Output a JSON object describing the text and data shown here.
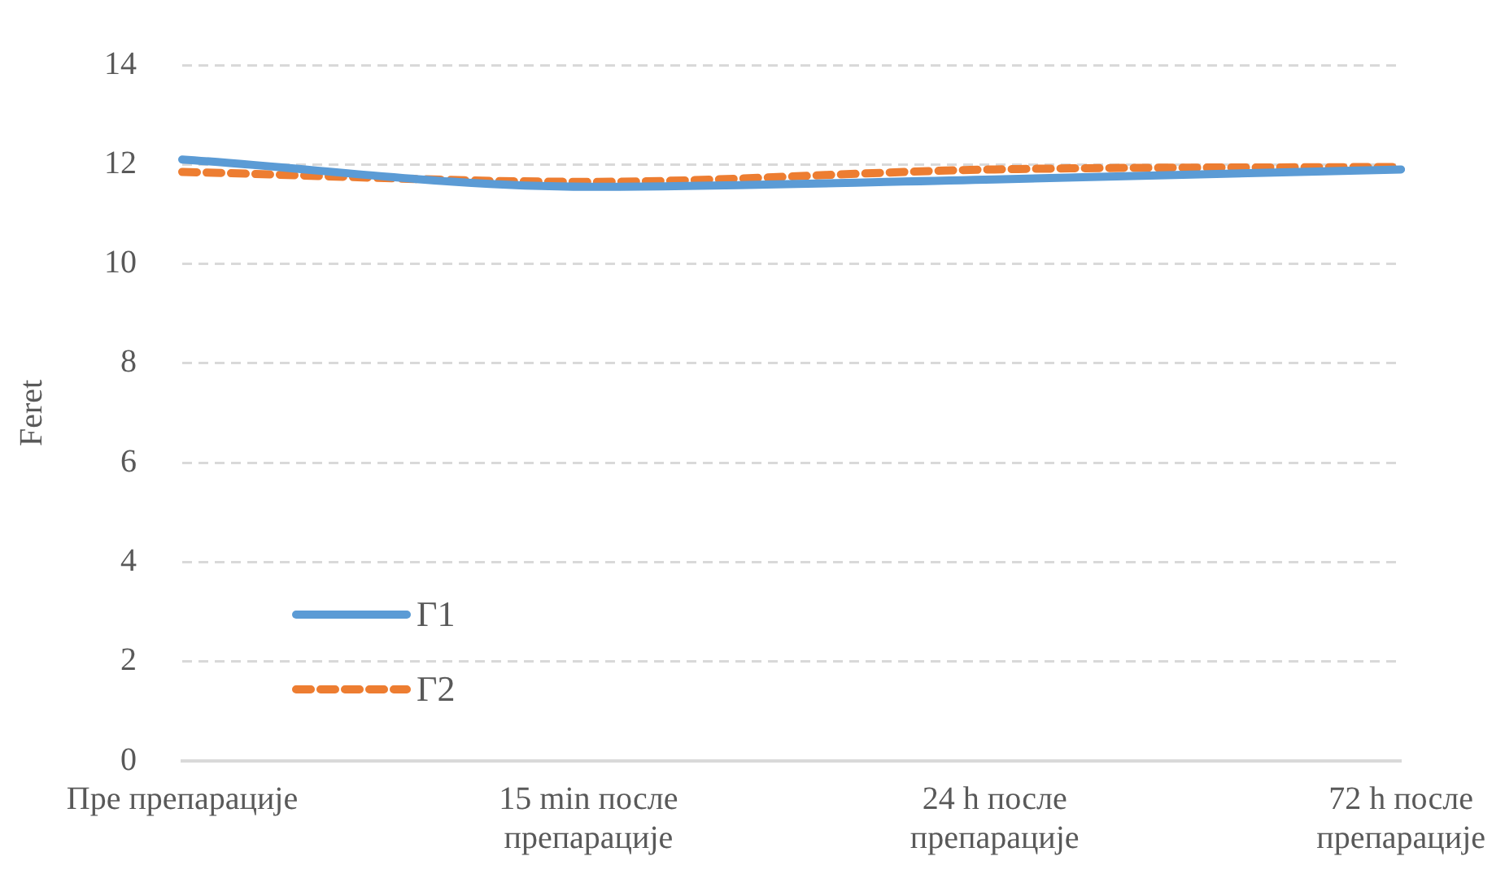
{
  "chart_data": {
    "type": "line",
    "ylabel": "Feret",
    "categories": [
      "Пре препарације",
      "15 min после препарације",
      "24 h после препарације",
      "72 h после препарације"
    ],
    "series": [
      {
        "name": "Г1",
        "color": "#5b9bd5",
        "values": [
          12.1,
          11.55,
          11.7,
          11.9
        ],
        "line_style": "solid"
      },
      {
        "name": "Г2",
        "color": "#ed7d31",
        "values": [
          11.85,
          11.65,
          11.9,
          11.95
        ],
        "line_style": "dashed"
      }
    ],
    "ylim": [
      0,
      14
    ],
    "yticks": [
      0,
      2,
      4,
      6,
      8,
      10,
      12,
      14
    ],
    "grid": "y",
    "legend": "bottom left",
    "marker": "none"
  }
}
